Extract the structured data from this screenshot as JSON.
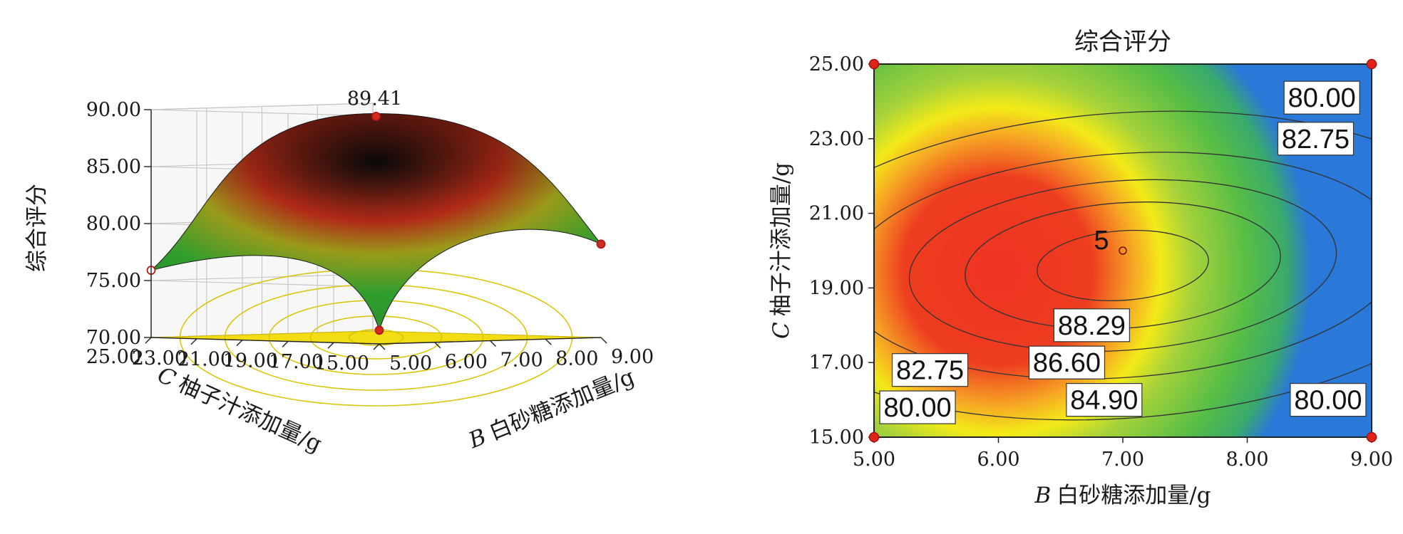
{
  "chart_data": [
    {
      "type": "surface3d",
      "zlabel": "综合评分",
      "xlabel_var": "B",
      "xlabel": "白砂糖添加量/g",
      "ylabel_var": "C",
      "ylabel": "柚子汁添加量/g",
      "xlim": [
        5.0,
        9.0
      ],
      "ylim": [
        15.0,
        25.0
      ],
      "zlim": [
        70.0,
        90.0
      ],
      "x_ticks": [
        "5.00",
        "6.00",
        "7.00",
        "8.00",
        "9.00"
      ],
      "y_ticks": [
        "15.00",
        "17.00",
        "19.00",
        "21.00",
        "23.00",
        "25.00"
      ],
      "z_ticks": [
        "70.00",
        "75.00",
        "80.00",
        "85.00",
        "90.00"
      ],
      "peak_label": "89.41",
      "points": [
        {
          "x": 7.0,
          "y": 20.0,
          "z": 89.41
        },
        {
          "x": 5.0,
          "y": 15.0,
          "z": 71.2
        },
        {
          "x": 5.0,
          "y": 25.0,
          "z": 75.9
        },
        {
          "x": 9.0,
          "y": 15.0,
          "z": 78.2
        }
      ],
      "surface_colors": [
        "#2e9e2e",
        "#9a9a1a",
        "#b02a18",
        "#0a0a0a"
      ],
      "floor_color": "#f2dc14"
    },
    {
      "type": "contour",
      "title": "综合评分",
      "xlabel_var": "B",
      "xlabel": "白砂糖添加量/g",
      "ylabel_var": "C",
      "ylabel": "柚子汁添加量/g",
      "xlim": [
        5.0,
        9.0
      ],
      "ylim": [
        15.0,
        25.0
      ],
      "x_ticks": [
        "5.00",
        "6.00",
        "7.00",
        "8.00",
        "9.00"
      ],
      "y_ticks": [
        "15.00",
        "17.00",
        "19.00",
        "21.00",
        "23.00",
        "25.00"
      ],
      "center": {
        "x": 7.0,
        "y": 19.6
      },
      "levels": [
        80.0,
        82.75,
        84.9,
        86.6,
        88.29
      ],
      "contour_labels": [
        {
          "text": "80.00",
          "x": 8.6,
          "y": 24.1
        },
        {
          "text": "82.75",
          "x": 8.55,
          "y": 23.0
        },
        {
          "text": "88.29",
          "x": 6.75,
          "y": 18.0
        },
        {
          "text": "86.60",
          "x": 6.55,
          "y": 17.0
        },
        {
          "text": "84.90",
          "x": 6.85,
          "y": 16.0
        },
        {
          "text": "82.75",
          "x": 5.45,
          "y": 16.8
        },
        {
          "text": "80.00",
          "x": 5.35,
          "y": 15.8
        },
        {
          "text": "80.00",
          "x": 8.65,
          "y": 16.0
        }
      ],
      "design_point_label": "5",
      "design_point": {
        "x": 7.0,
        "y": 20.0
      },
      "corner_points": [
        {
          "x": 5.0,
          "y": 25.0
        },
        {
          "x": 9.0,
          "y": 25.0
        },
        {
          "x": 5.0,
          "y": 15.0
        },
        {
          "x": 9.0,
          "y": 15.0
        }
      ]
    }
  ]
}
